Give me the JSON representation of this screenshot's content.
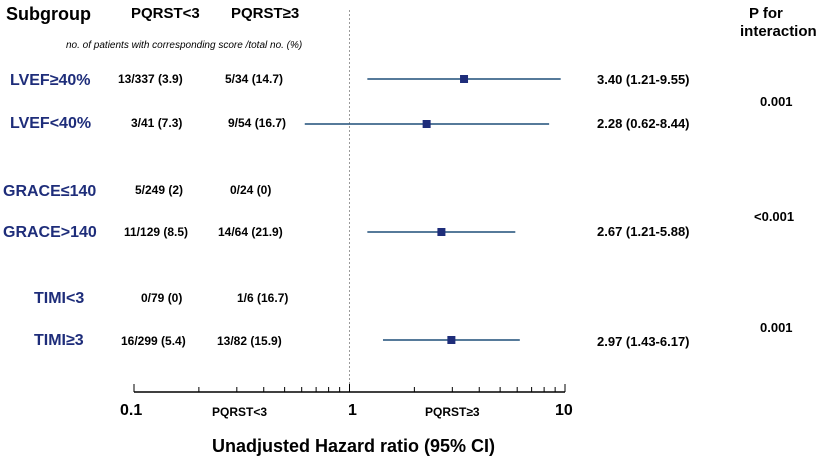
{
  "header": {
    "subgroup": "Subgroup",
    "col1": "PQRST<3",
    "col2": "PQRST≥3",
    "p_line1": "P for",
    "p_line2": "interaction",
    "note": "no. of patients with corresponding score /total no. (%)"
  },
  "rows": [
    {
      "label": "LVEF≥40%",
      "c1": "13/337 (3.9)",
      "c2": "5/34 (14.7)",
      "hr_text": "3.40 (1.21-9.55)"
    },
    {
      "label": "LVEF<40%",
      "c1": "3/41 (7.3)",
      "c2": "9/54 (16.7)",
      "hr_text": "2.28 (0.62-8.44)"
    },
    {
      "label": "GRACE≤140",
      "c1": "5/249 (2)",
      "c2": "0/24 (0)",
      "hr_text": ""
    },
    {
      "label": "GRACE>140",
      "c1": "11/129 (8.5)",
      "c2": "14/64 (21.9)",
      "hr_text": "2.67 (1.21-5.88)"
    },
    {
      "label": "TIMI<3",
      "c1": "0/79 (0)",
      "c2": "1/6 (16.7)",
      "hr_text": ""
    },
    {
      "label": "TIMI≥3",
      "c1": "16/299 (5.4)",
      "c2": "13/82 (15.9)",
      "hr_text": "2.97 (1.43-6.17)"
    }
  ],
  "p_values": [
    "0.001",
    "<0.001",
    "0.001"
  ],
  "axis": {
    "ticks": [
      "0.1",
      "1",
      "10"
    ],
    "left_label": "PQRST<3",
    "right_label": "PQRST≥3",
    "title": "Unadjusted Hazard ratio (95% CI)"
  },
  "colors": {
    "accent": "#1e2d7a",
    "line": "#1f4e79"
  },
  "chart_data": {
    "type": "forest",
    "title": "",
    "xlabel": "Unadjusted Hazard ratio (95% CI)",
    "xscale": "log",
    "xlim": [
      0.1,
      10
    ],
    "reference_line": 1,
    "series": [
      {
        "name": "LVEF≥40%",
        "hr": 3.4,
        "lo": 1.21,
        "hi": 9.55
      },
      {
        "name": "LVEF<40%",
        "hr": 2.28,
        "lo": 0.62,
        "hi": 8.44
      },
      {
        "name": "GRACE≤140",
        "hr": null,
        "lo": null,
        "hi": null
      },
      {
        "name": "GRACE>140",
        "hr": 2.67,
        "lo": 1.21,
        "hi": 5.88
      },
      {
        "name": "TIMI<3",
        "hr": null,
        "lo": null,
        "hi": null
      },
      {
        "name": "TIMI≥3",
        "hr": 2.97,
        "lo": 1.43,
        "hi": 6.17
      }
    ]
  }
}
